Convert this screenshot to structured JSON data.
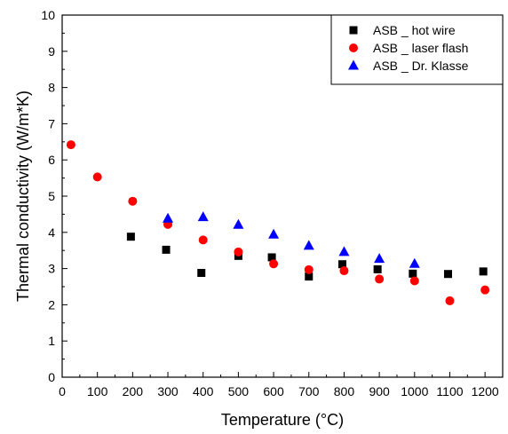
{
  "chart_data": {
    "type": "scatter",
    "xlabel": "Temperature (°C)",
    "ylabel": "Thermal conductivity (W/m*K)",
    "xlim": [
      0,
      1250
    ],
    "ylim": [
      0,
      10
    ],
    "x_ticks": [
      0,
      100,
      200,
      300,
      400,
      500,
      600,
      700,
      800,
      900,
      1000,
      1100,
      1200
    ],
    "y_ticks": [
      0,
      1,
      2,
      3,
      4,
      5,
      6,
      7,
      8,
      9,
      10
    ],
    "grid": false,
    "legend_position": "top-right",
    "series": [
      {
        "name": "ASB _ hot wire",
        "marker": "square",
        "color": "#000000",
        "x": [
          195,
          295,
          395,
          500,
          595,
          700,
          795,
          895,
          995,
          1095,
          1195
        ],
        "y": [
          3.88,
          3.52,
          2.88,
          3.35,
          3.31,
          2.78,
          3.12,
          2.98,
          2.86,
          2.85,
          2.92
        ]
      },
      {
        "name": "ASB _ laser flash",
        "marker": "circle",
        "color": "#ff0000",
        "x": [
          25,
          100,
          200,
          300,
          400,
          500,
          600,
          700,
          800,
          900,
          1000,
          1100,
          1200
        ],
        "y": [
          6.42,
          5.53,
          4.86,
          4.22,
          3.79,
          3.46,
          3.13,
          2.97,
          2.94,
          2.71,
          2.66,
          2.11,
          2.41
        ]
      },
      {
        "name": "ASB _ Dr. Klasse",
        "marker": "triangle",
        "color": "#0000ff",
        "x": [
          300,
          400,
          500,
          600,
          700,
          800,
          900,
          1000
        ],
        "y": [
          4.38,
          4.42,
          4.21,
          3.94,
          3.63,
          3.46,
          3.27,
          3.13
        ]
      }
    ]
  }
}
